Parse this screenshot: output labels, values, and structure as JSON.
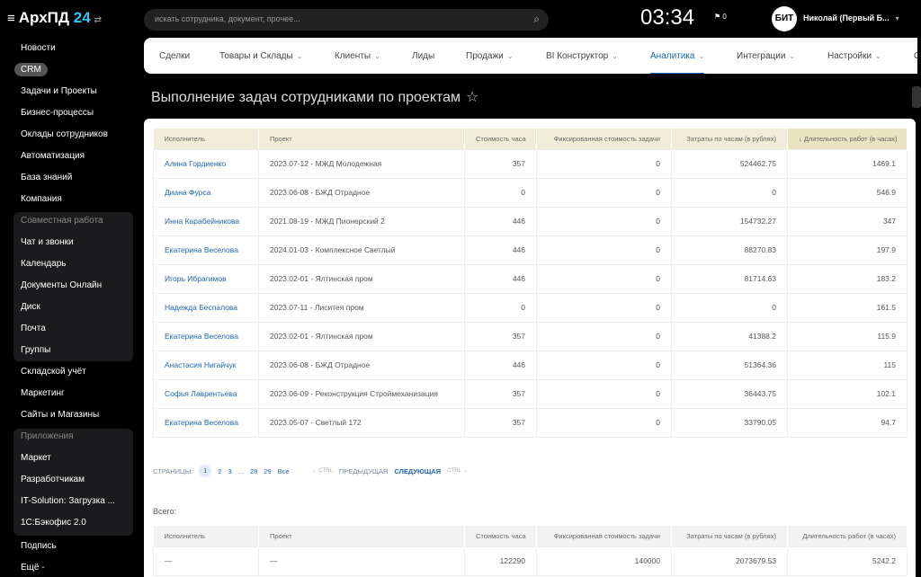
{
  "app": {
    "name": "АрхПД",
    "name_num": "24",
    "menu_icon": "hamburger-icon",
    "switch_icon": "swap-icon"
  },
  "sidebar": {
    "items_top": [
      "Новости",
      "CRM",
      "Задачи и Проекты",
      "Бизнес-процессы",
      "Оклады сотрудников",
      "Автоматизация",
      "База знаний",
      "Компания"
    ],
    "group1": {
      "title": "Совместная работа",
      "items": [
        "Чат и звонки",
        "Календарь",
        "Документы Онлайн",
        "Диск",
        "Почта",
        "Группы"
      ]
    },
    "items_mid": [
      "Складской учёт",
      "Маркетинг",
      "Сайты и Магазины"
    ],
    "group2": {
      "title": "Приложения",
      "items": [
        "Маркет",
        "Разработчикам",
        "IT-Solution: Загрузка ...",
        "1С:Бэкофис 2.0"
      ]
    },
    "items_bottom": [
      "Подпись",
      "Ещё -"
    ]
  },
  "header": {
    "search_placeholder": "искать сотрудника, документ, прочее...",
    "clock": "03:34",
    "flag_count": "0",
    "avatar_text": "БИТ",
    "user_name": "Николай (Первый Б..."
  },
  "nav": {
    "tabs": [
      {
        "label": "Сделки",
        "dd": false
      },
      {
        "label": "Товары и Склады",
        "dd": true
      },
      {
        "label": "Клиенты",
        "dd": true
      },
      {
        "label": "Лиды",
        "dd": false
      },
      {
        "label": "Продажи",
        "dd": true
      },
      {
        "label": "BI Конструктор",
        "dd": true
      },
      {
        "label": "Аналитика",
        "dd": true,
        "active": true
      },
      {
        "label": "Интеграции",
        "dd": true
      },
      {
        "label": "Настройки",
        "dd": true
      },
      {
        "label": "С",
        "dd": false
      }
    ]
  },
  "page": {
    "title": "Выполнение задач сотрудниками по проектам",
    "star": "☆"
  },
  "table": {
    "columns": [
      "Исполнитель",
      "Проект",
      "Стоимость часа",
      "Фиксированная стоимость задачи",
      "Затраты по часам (в рублях)",
      "↓ Длительность работ (в часах)"
    ],
    "rows": [
      [
        "Алина Гордиенко",
        "2023.07-12 - МЖД Молодежная",
        "357",
        "0",
        "524462.75",
        "1469.1"
      ],
      [
        "Диана Фурса",
        "2023.06-08 - БЖД Отрадное",
        "0",
        "0",
        "0",
        "546.9"
      ],
      [
        "Инна Карабейникова",
        "2021.08-19 - МЖД Пионерский 2",
        "446",
        "0",
        "154732.27",
        "347"
      ],
      [
        "Екатерина Веселова",
        "2024.01-03 - Комплексное Светлый",
        "446",
        "0",
        "88270.83",
        "197.9"
      ],
      [
        "Игорь Ибрагимов",
        "2023.02-01 - Ялтинская пром",
        "446",
        "0",
        "81714.63",
        "183.2"
      ],
      [
        "Надежда Беспалова",
        "2023.07-11 - Лиситея пром",
        "0",
        "0",
        "0",
        "161.5"
      ],
      [
        "Екатерина Веселова",
        "2023.02-01 - Ялтинская пром",
        "357",
        "0",
        "41388.2",
        "115.9"
      ],
      [
        "Анастасия Нигайчук",
        "2023.06-08 - БЖД Отрадное",
        "446",
        "0",
        "51364.36",
        "115"
      ],
      [
        "Софья Лаврентьева",
        "2023.06-09 - Реконструкция Строймеханизация",
        "357",
        "0",
        "36443.75",
        "102.1"
      ],
      [
        "Екатерина Веселова",
        "2023.05-07 - Светлый 172",
        "357",
        "0",
        "33790.05",
        "94.7"
      ]
    ]
  },
  "pagination": {
    "label": "СТРАНИЦЫ:",
    "pages": [
      "1",
      "2",
      "3",
      "...",
      "28",
      "29",
      "Все"
    ],
    "current": "1",
    "prev_ctrl": "← CTRL",
    "prev": "ПРЕДЫДУЩАЯ",
    "next": "СЛЕДУЮЩАЯ",
    "next_ctrl": "CTRL →"
  },
  "totals": {
    "label": "Всего:",
    "columns": [
      "Исполнитель",
      "Проект",
      "Стоимость часа",
      "Фиксированная стоимость задачи",
      "Затраты по часам (в рублях)",
      "Длительность работ (в часах)"
    ],
    "row": [
      "—",
      "—",
      "122290",
      "140000",
      "2073679.53",
      "5242.2"
    ]
  }
}
